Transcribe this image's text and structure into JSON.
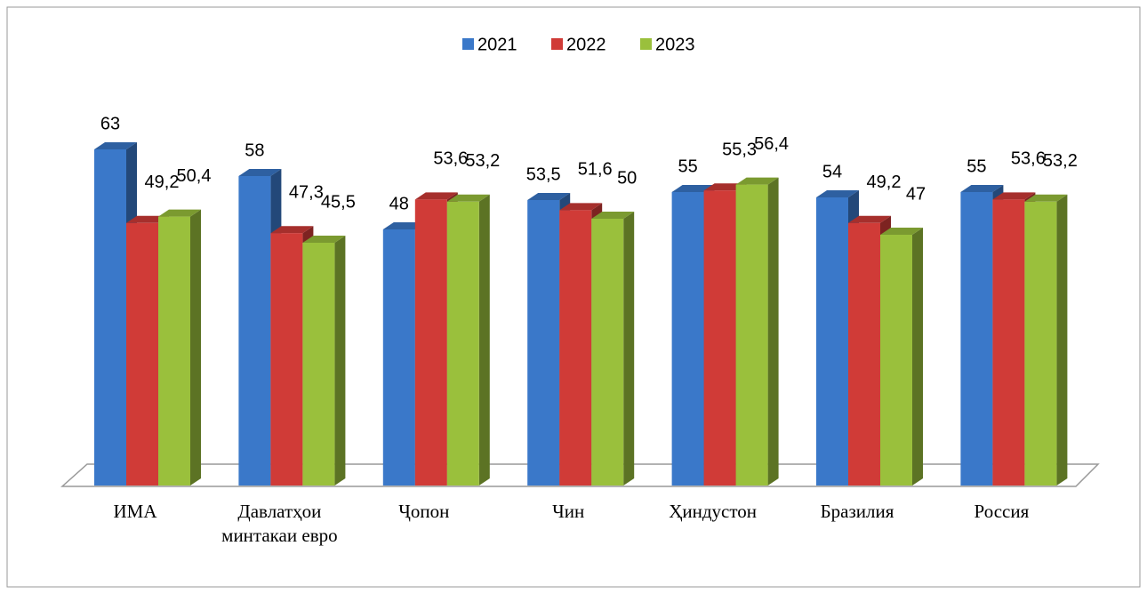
{
  "chart_data": {
    "type": "bar3d",
    "categories": [
      "ИМА",
      "Давлатҳои минтакаи евро",
      "Ҷопон",
      "Чин",
      "Ҳиндустон",
      "Бразилия",
      "Россия"
    ],
    "series": [
      {
        "name": "2021",
        "color": "#3a78c9",
        "values": [
          63,
          58,
          48,
          53.5,
          55,
          54,
          55
        ],
        "value_labels": [
          "63",
          "58",
          "48",
          "53,5",
          "55",
          "54",
          "55"
        ]
      },
      {
        "name": "2022",
        "color": "#d03b37",
        "values": [
          49.2,
          47.3,
          53.6,
          51.6,
          55.3,
          49.2,
          53.6
        ],
        "value_labels": [
          "49,2",
          "47,3",
          "53,6",
          "51,6",
          "55,3",
          "49,2",
          "53,6"
        ]
      },
      {
        "name": "2023",
        "color": "#9ac03c",
        "values": [
          50.4,
          45.5,
          53.2,
          50,
          56.4,
          47,
          53.2
        ],
        "value_labels": [
          "50,4",
          "45,5",
          "53,2",
          "50",
          "56,4",
          "47",
          "53,2"
        ]
      }
    ],
    "ylim": [
      0,
      70
    ],
    "legend": "top"
  }
}
